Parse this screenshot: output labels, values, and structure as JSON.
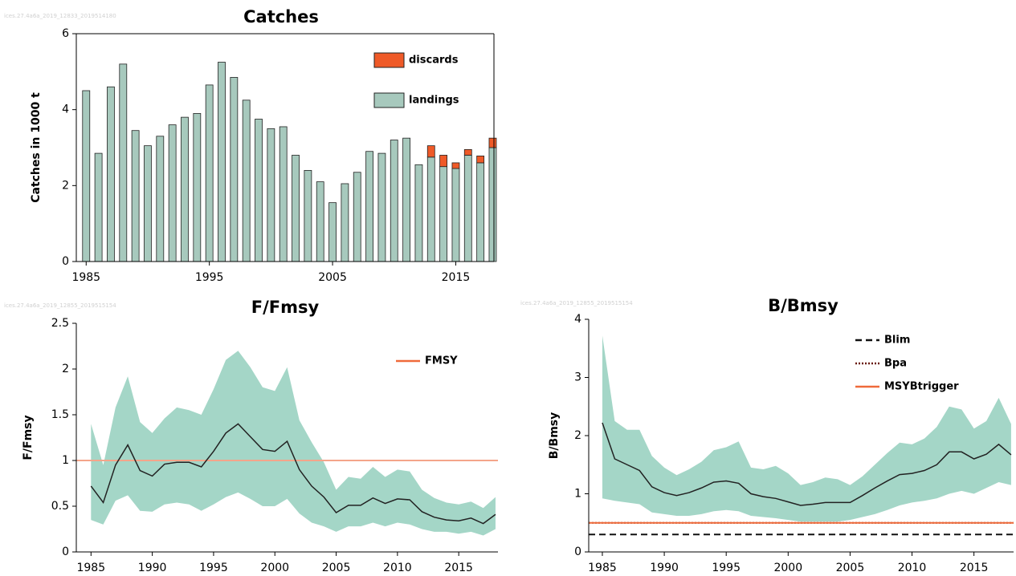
{
  "chart_data": [
    {
      "type": "bar",
      "stacked": true,
      "title": "Catches",
      "source": "ices.27.4a6a_2019_12833_2019514180",
      "ylabel": "Catches in 1000 t",
      "x": [
        1985,
        1986,
        1987,
        1988,
        1989,
        1990,
        1991,
        1992,
        1993,
        1994,
        1995,
        1996,
        1997,
        1998,
        1999,
        2000,
        2001,
        2002,
        2003,
        2004,
        2005,
        2006,
        2007,
        2008,
        2009,
        2010,
        2011,
        2012,
        2013,
        2014,
        2015,
        2016,
        2017,
        2018
      ],
      "series": [
        {
          "name": "landings",
          "color": "#a7c9bd",
          "values": [
            4.5,
            2.85,
            4.6,
            5.2,
            3.45,
            3.05,
            3.3,
            3.6,
            3.8,
            3.9,
            4.65,
            5.25,
            4.85,
            4.25,
            3.75,
            3.5,
            3.55,
            2.8,
            2.4,
            2.1,
            1.55,
            2.05,
            2.35,
            2.9,
            2.85,
            3.2,
            3.25,
            2.55,
            2.75,
            2.5,
            2.45,
            2.8,
            2.6,
            3.0
          ]
        },
        {
          "name": "discards",
          "color": "#ef5a28",
          "values": [
            null,
            null,
            null,
            null,
            null,
            null,
            null,
            null,
            null,
            null,
            null,
            null,
            null,
            null,
            null,
            null,
            null,
            null,
            null,
            null,
            null,
            null,
            null,
            null,
            null,
            null,
            null,
            null,
            0.3,
            0.3,
            0.15,
            0.15,
            0.18,
            0.25
          ]
        }
      ],
      "xlim": [
        1984.2,
        2018.1
      ],
      "xticks": [
        1985,
        1995,
        2005,
        2015
      ],
      "ylim": [
        0,
        6
      ],
      "yticks": [
        0,
        2,
        4,
        6
      ]
    },
    {
      "type": "line",
      "title": "F/Fmsy",
      "source": "ices.27.4a6a_2019_12855_2019515154",
      "ylabel": "F/Fmsy",
      "x": [
        1985,
        1986,
        1987,
        1988,
        1989,
        1990,
        1991,
        1992,
        1993,
        1994,
        1995,
        1996,
        1997,
        1998,
        1999,
        2000,
        2001,
        2002,
        2003,
        2004,
        2005,
        2006,
        2007,
        2008,
        2009,
        2010,
        2011,
        2012,
        2013,
        2014,
        2015,
        2016,
        2017,
        2018
      ],
      "values": [
        0.72,
        0.54,
        0.95,
        1.17,
        0.89,
        0.83,
        0.96,
        0.98,
        0.98,
        0.93,
        1.1,
        1.3,
        1.4,
        1.26,
        1.12,
        1.1,
        1.21,
        0.9,
        0.72,
        0.6,
        0.43,
        0.51,
        0.51,
        0.59,
        0.53,
        0.58,
        0.57,
        0.44,
        0.38,
        0.35,
        0.34,
        0.37,
        0.31,
        0.41
      ],
      "upper": [
        1.4,
        0.95,
        1.58,
        1.92,
        1.42,
        1.3,
        1.46,
        1.58,
        1.55,
        1.5,
        1.78,
        2.1,
        2.2,
        2.02,
        1.8,
        1.76,
        2.02,
        1.44,
        1.2,
        0.98,
        0.68,
        0.82,
        0.8,
        0.93,
        0.82,
        0.9,
        0.88,
        0.68,
        0.59,
        0.54,
        0.52,
        0.55,
        0.48,
        0.6
      ],
      "lower": [
        0.35,
        0.3,
        0.56,
        0.62,
        0.45,
        0.44,
        0.52,
        0.54,
        0.52,
        0.45,
        0.52,
        0.6,
        0.65,
        0.58,
        0.5,
        0.5,
        0.58,
        0.42,
        0.32,
        0.28,
        0.22,
        0.28,
        0.28,
        0.32,
        0.28,
        0.32,
        0.3,
        0.25,
        0.22,
        0.22,
        0.2,
        0.22,
        0.18,
        0.25
      ],
      "color": "#222222",
      "band_color": "#a4d6c7",
      "reference_lines": [
        {
          "name": "FMSY",
          "value": 1,
          "color": "#f4a58a",
          "legend_color": "#ef6a3a",
          "style": "solid"
        }
      ],
      "xlim": [
        1983.8,
        2018.2
      ],
      "xticks": [
        1985,
        1990,
        1995,
        2000,
        2005,
        2010,
        2015
      ],
      "ylim": [
        0,
        2.5
      ],
      "yticks": [
        0,
        0.5,
        1,
        1.5,
        2,
        2.5
      ]
    },
    {
      "type": "line",
      "title": "B/Bmsy",
      "source": "ices.27.4a6a_2019_12855_2019515154",
      "ylabel": "B/Bmsy",
      "x": [
        1985,
        1986,
        1987,
        1988,
        1989,
        1990,
        1991,
        1992,
        1993,
        1994,
        1995,
        1996,
        1997,
        1998,
        1999,
        2000,
        2001,
        2002,
        2003,
        2004,
        2005,
        2006,
        2007,
        2008,
        2009,
        2010,
        2011,
        2012,
        2013,
        2014,
        2015,
        2016,
        2017,
        2018
      ],
      "values": [
        2.22,
        1.6,
        1.5,
        1.4,
        1.12,
        1.02,
        0.97,
        1.02,
        1.1,
        1.2,
        1.22,
        1.18,
        1.0,
        0.95,
        0.92,
        0.86,
        0.8,
        0.82,
        0.85,
        0.85,
        0.85,
        0.97,
        1.1,
        1.22,
        1.33,
        1.35,
        1.4,
        1.5,
        1.72,
        1.72,
        1.6,
        1.68,
        1.85,
        1.67
      ],
      "upper": [
        3.72,
        2.25,
        2.1,
        2.1,
        1.65,
        1.45,
        1.32,
        1.42,
        1.55,
        1.75,
        1.8,
        1.9,
        1.45,
        1.42,
        1.48,
        1.35,
        1.15,
        1.2,
        1.28,
        1.25,
        1.15,
        1.3,
        1.5,
        1.7,
        1.88,
        1.85,
        1.95,
        2.15,
        2.5,
        2.45,
        2.12,
        2.25,
        2.65,
        2.2
      ],
      "lower": [
        0.92,
        0.88,
        0.85,
        0.82,
        0.68,
        0.65,
        0.62,
        0.62,
        0.65,
        0.7,
        0.72,
        0.7,
        0.62,
        0.6,
        0.58,
        0.55,
        0.52,
        0.52,
        0.52,
        0.52,
        0.55,
        0.6,
        0.65,
        0.72,
        0.8,
        0.85,
        0.88,
        0.92,
        1.0,
        1.05,
        1.0,
        1.1,
        1.2,
        1.15
      ],
      "color": "#222222",
      "band_color": "#a4d6c7",
      "reference_lines": [
        {
          "name": "Blim",
          "value": 0.3,
          "color": "#111111",
          "style": "dashed"
        },
        {
          "name": "Bpa",
          "value": 0.5,
          "color": "#6a1a10",
          "style": "dotted"
        },
        {
          "name": "MSYBtrigger",
          "value": 0.5,
          "color": "#ef6a3a",
          "style": "solid"
        }
      ],
      "xlim": [
        1983.9,
        2018.2
      ],
      "xticks": [
        1985,
        1990,
        1995,
        2000,
        2005,
        2010,
        2015
      ],
      "ylim": [
        0,
        4
      ],
      "yticks": [
        0,
        1,
        2,
        3,
        4
      ]
    }
  ]
}
